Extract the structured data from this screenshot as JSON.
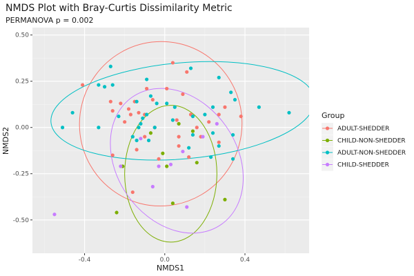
{
  "chart_data": {
    "type": "scatter",
    "title": "NMDS Plot with Bray-Curtis Dissimilarity Metric",
    "subtitle": "PERMANOVA p = 0.002",
    "xlabel": "NMDS1",
    "ylabel": "NMDS2",
    "xlim": [
      -0.66,
      0.72
    ],
    "ylim": [
      -0.68,
      0.54
    ],
    "xticks": [
      -0.4,
      0.0,
      0.4
    ],
    "xtick_labels": [
      "-0.4",
      "0.0",
      "0.4"
    ],
    "yticks": [
      -0.5,
      -0.25,
      0.0,
      0.25,
      0.5
    ],
    "ytick_labels": [
      "-0.50",
      "-0.25",
      "0.00",
      "0.25",
      "0.50"
    ],
    "grid": true,
    "legend": {
      "title": "Group",
      "position": "right"
    },
    "series": [
      {
        "name": "ADULT-SHEDDER",
        "color": "#F8766D",
        "points": [
          [
            -0.41,
            0.23
          ],
          [
            -0.27,
            0.14
          ],
          [
            -0.22,
            0.13
          ],
          [
            -0.18,
            0.1
          ],
          [
            -0.15,
            0.14
          ],
          [
            -0.13,
            0.08
          ],
          [
            -0.1,
            0.07
          ],
          [
            -0.09,
            0.21
          ],
          [
            -0.06,
            0.15
          ],
          [
            0.01,
            0.21
          ],
          [
            0.09,
            0.18
          ],
          [
            0.11,
            0.3
          ],
          [
            0.06,
            0.04
          ],
          [
            0.13,
            0.07
          ],
          [
            -0.17,
            0.07
          ],
          [
            -0.2,
            0.03
          ],
          [
            -0.26,
            0.09
          ],
          [
            -0.05,
            0.0
          ],
          [
            -0.1,
            -0.05
          ],
          [
            -0.14,
            -0.12
          ],
          [
            -0.26,
            -0.15
          ],
          [
            -0.03,
            -0.17
          ],
          [
            0.07,
            -0.1
          ],
          [
            0.12,
            -0.16
          ],
          [
            0.18,
            -0.05
          ],
          [
            0.22,
            0.03
          ],
          [
            0.27,
            0.07
          ],
          [
            0.3,
            0.11
          ],
          [
            0.38,
            0.06
          ],
          [
            0.27,
            -0.08
          ],
          [
            0.04,
            0.35
          ],
          [
            -0.16,
            -0.35
          ],
          [
            0.16,
            0.0
          ],
          [
            0.07,
            -0.05
          ]
        ]
      },
      {
        "name": "CHILD-NON-SHEDDER",
        "color": "#7CAE00",
        "points": [
          [
            -0.24,
            -0.46
          ],
          [
            -0.21,
            -0.21
          ],
          [
            0.04,
            -0.41
          ],
          [
            -0.01,
            -0.14
          ],
          [
            0.01,
            -0.21
          ],
          [
            0.14,
            -0.02
          ],
          [
            0.07,
            0.02
          ],
          [
            0.16,
            -0.19
          ],
          [
            0.3,
            -0.39
          ],
          [
            -0.07,
            -0.03
          ]
        ]
      },
      {
        "name": "ADULT-NON-SHEDDER",
        "color": "#00BFC4",
        "points": [
          [
            -0.51,
            0.0
          ],
          [
            -0.46,
            0.08
          ],
          [
            -0.33,
            0.23
          ],
          [
            -0.3,
            0.22
          ],
          [
            -0.27,
            0.33
          ],
          [
            -0.26,
            0.23
          ],
          [
            -0.33,
            0.0
          ],
          [
            -0.23,
            0.06
          ],
          [
            -0.14,
            0.14
          ],
          [
            -0.09,
            0.26
          ],
          [
            -0.04,
            0.13
          ],
          [
            -0.07,
            0.17
          ],
          [
            -0.09,
            0.07
          ],
          [
            -0.05,
            0.0
          ],
          [
            -0.11,
            0.05
          ],
          [
            -0.13,
            0.0
          ],
          [
            -0.14,
            -0.07
          ],
          [
            -0.08,
            -0.07
          ],
          [
            0.01,
            0.13
          ],
          [
            0.05,
            0.11
          ],
          [
            0.04,
            0.04
          ],
          [
            0.14,
            0.06
          ],
          [
            0.13,
            0.32
          ],
          [
            0.27,
            0.27
          ],
          [
            0.24,
            0.11
          ],
          [
            0.2,
            0.07
          ],
          [
            0.24,
            -0.03
          ],
          [
            0.33,
            0.19
          ],
          [
            0.35,
            0.15
          ],
          [
            0.34,
            -0.04
          ],
          [
            0.47,
            0.11
          ],
          [
            0.62,
            0.08
          ],
          [
            0.23,
            -0.16
          ],
          [
            0.34,
            -0.17
          ],
          [
            0.27,
            -0.1
          ],
          [
            0.12,
            -0.11
          ],
          [
            0.14,
            -0.04
          ],
          [
            -0.16,
            -0.05
          ],
          [
            -0.12,
            0.02
          ]
        ]
      },
      {
        "name": "CHILD-SHEDDER",
        "color": "#C77CFF",
        "points": [
          [
            -0.55,
            -0.47
          ],
          [
            -0.06,
            -0.32
          ],
          [
            0.03,
            -0.2
          ],
          [
            -0.03,
            -0.21
          ],
          [
            0.11,
            -0.43
          ],
          [
            0.26,
            0.02
          ],
          [
            -0.12,
            -0.06
          ],
          [
            -0.22,
            -0.21
          ],
          [
            0.19,
            -0.05
          ],
          [
            0.09,
            -0.13
          ]
        ]
      }
    ],
    "ellipses": [
      {
        "series": "ADULT-SHEDDER",
        "color": "#F8766D",
        "cx": -0.02,
        "cy": 0.02,
        "rx": 0.405,
        "ry": 0.445,
        "angle_deg": 15
      },
      {
        "series": "CHILD-NON-SHEDDER",
        "color": "#7CAE00",
        "cx": 0.03,
        "cy": -0.25,
        "rx": 0.23,
        "ry": 0.37,
        "angle_deg": 0
      },
      {
        "series": "ADULT-NON-SHEDDER",
        "color": "#00BFC4",
        "cx": 0.09,
        "cy": 0.09,
        "rx": 0.66,
        "ry": 0.26,
        "angle_deg": -5
      },
      {
        "series": "CHILD-SHEDDER",
        "color": "#C77CFF",
        "cx": 0.06,
        "cy": -0.18,
        "rx": 0.3,
        "ry": 0.42,
        "angle_deg": -35
      }
    ]
  }
}
